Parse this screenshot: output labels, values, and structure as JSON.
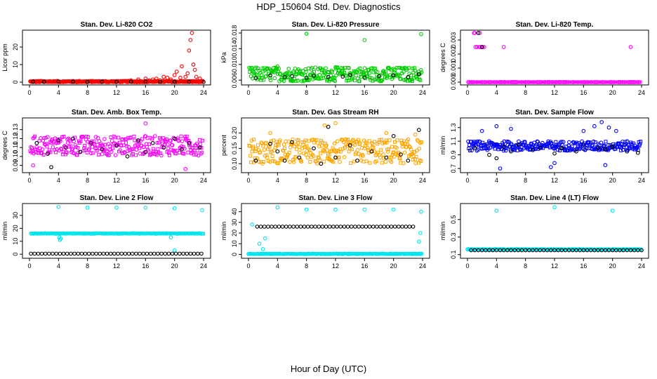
{
  "page": {
    "title": "HDP_150604  Std. Dev. Diagnostics",
    "xlabel": "Hour of Day (UTC)"
  },
  "colors": {
    "black": "#000000",
    "red": "#ff0000",
    "green": "#00cc00",
    "magenta": "#ff00ff",
    "orange": "#ffa500",
    "blue": "#0000ff",
    "cyan": "#00e5ee"
  },
  "chart_data": [
    {
      "type": "scatter",
      "title": "Stan. Dev. Li-820 CO2",
      "ylabel": "Licor ppm",
      "xlim": [
        0,
        24
      ],
      "ylim": [
        0,
        28
      ],
      "xticks": [
        "0",
        "4",
        "8",
        "12",
        "16",
        "20",
        "24"
      ],
      "yticks": [
        "0",
        "10",
        "20"
      ],
      "color": "red",
      "base": 0.3,
      "spread": 0.4,
      "black_points": [
        [
          0.5,
          0.2
        ],
        [
          2,
          0.1
        ],
        [
          4,
          0.3
        ],
        [
          6,
          0.2
        ],
        [
          8,
          0.1
        ],
        [
          10,
          0.2
        ],
        [
          12,
          0.1
        ],
        [
          14,
          0.2
        ],
        [
          16,
          0.3
        ],
        [
          18,
          0.2
        ],
        [
          20,
          0.1
        ],
        [
          22,
          0.2
        ],
        [
          24,
          0.1
        ]
      ],
      "outliers": [
        [
          14,
          1
        ],
        [
          15,
          1.5
        ],
        [
          16,
          2
        ],
        [
          16.5,
          1
        ],
        [
          17,
          1.5
        ],
        [
          17.5,
          2
        ],
        [
          18,
          1
        ],
        [
          18.5,
          3
        ],
        [
          19,
          2.5
        ],
        [
          19.5,
          1.5
        ],
        [
          20,
          4
        ],
        [
          20.3,
          6
        ],
        [
          20.8,
          2.5
        ],
        [
          21,
          9
        ],
        [
          21.5,
          3
        ],
        [
          21.8,
          5
        ],
        [
          22,
          18
        ],
        [
          22.2,
          24
        ],
        [
          22.4,
          28
        ],
        [
          22.6,
          10
        ],
        [
          22.8,
          7
        ],
        [
          23,
          3
        ],
        [
          23.5,
          2
        ]
      ]
    },
    {
      "type": "scatter",
      "title": "Stan. Dev. Li-820 Pressure",
      "ylabel": "kPa",
      "xlim": [
        0,
        24
      ],
      "ylim": [
        0.0055,
        0.018
      ],
      "xticks": [
        "0",
        "4",
        "8",
        "12",
        "16",
        "20",
        "24"
      ],
      "yticks": [
        "0.006",
        "0.010",
        "0.014",
        "0.018"
      ],
      "color": "green",
      "base": 0.0075,
      "spread": 0.0018,
      "black_points": [
        [
          1,
          0.0065
        ],
        [
          3,
          0.0072
        ],
        [
          5,
          0.0068
        ],
        [
          6,
          0.007
        ],
        [
          8,
          0.0066
        ],
        [
          9,
          0.0071
        ],
        [
          11,
          0.0068
        ],
        [
          13,
          0.0069
        ],
        [
          14,
          0.0073
        ],
        [
          16,
          0.0067
        ],
        [
          18,
          0.007
        ],
        [
          20,
          0.0072
        ],
        [
          22,
          0.0068
        ],
        [
          23.5,
          0.0075
        ]
      ],
      "outliers": [
        [
          8,
          0.0178
        ],
        [
          16,
          0.0162
        ],
        [
          23.8,
          0.0177
        ],
        [
          4,
          0.0095
        ],
        [
          12,
          0.0093
        ]
      ]
    },
    {
      "type": "scatter",
      "title": "Stan. Dev. Li-820 Temp.",
      "ylabel": "degrees C",
      "xlim": [
        0,
        24
      ],
      "ylim": [
        0,
        0.0035
      ],
      "xticks": [
        "0",
        "4",
        "8",
        "12",
        "16",
        "20",
        "24"
      ],
      "yticks": [
        "0.000",
        "0.001",
        "0.002",
        "0.003"
      ],
      "color": "magenta",
      "base": 0.0,
      "spread": 0.0,
      "black_points": [
        [
          1.5,
          0.0035
        ],
        [
          2,
          0.0025
        ]
      ],
      "outliers": [
        [
          0.9,
          0.0035
        ],
        [
          1.1,
          0.0025
        ],
        [
          1.3,
          0.0025
        ],
        [
          1.6,
          0.0025
        ],
        [
          1.8,
          0.0025
        ],
        [
          2.1,
          0.0025
        ],
        [
          2.3,
          0.0025
        ],
        [
          5,
          0.0025
        ],
        [
          22.5,
          0.0025
        ],
        [
          1,
          0.0035
        ],
        [
          1.7,
          0.0035
        ]
      ]
    },
    {
      "type": "scatter",
      "title": "Stan. Dev. Amb. Box Temp.",
      "ylabel": "degrees C",
      "xlim": [
        0,
        24
      ],
      "ylim": [
        0.085,
        0.14
      ],
      "xticks": [
        "0",
        "4",
        "8",
        "12",
        "16",
        "20",
        "24"
      ],
      "yticks": [
        "0.09",
        "0.10",
        "0.11",
        "0.12",
        "0.13"
      ],
      "color": "magenta",
      "base": 0.112,
      "spread": 0.011,
      "black_points": [
        [
          1,
          0.115
        ],
        [
          2.5,
          0.103
        ],
        [
          3,
          0.088
        ],
        [
          4,
          0.118
        ],
        [
          5,
          0.11
        ],
        [
          6,
          0.12
        ],
        [
          7,
          0.105
        ],
        [
          8.5,
          0.115
        ],
        [
          10,
          0.108
        ],
        [
          12,
          0.112
        ],
        [
          13.5,
          0.1
        ],
        [
          15,
          0.118
        ],
        [
          16,
          0.105
        ],
        [
          17,
          0.115
        ],
        [
          18.5,
          0.11
        ],
        [
          20,
          0.12
        ],
        [
          21,
          0.108
        ],
        [
          22,
          0.115
        ],
        [
          23.5,
          0.11
        ]
      ],
      "outliers": [
        [
          16,
          0.137
        ],
        [
          21.5,
          0.086
        ],
        [
          0.5,
          0.09
        ]
      ]
    },
    {
      "type": "scatter",
      "title": "Stan. Dev. Gas Stream RH",
      "ylabel": "percent",
      "xlim": [
        0,
        24
      ],
      "ylim": [
        0.08,
        0.24
      ],
      "xticks": [
        "0",
        "4",
        "8",
        "12",
        "16",
        "20",
        "24"
      ],
      "yticks": [
        "0.10",
        "0.15",
        "0.20"
      ],
      "color": "orange",
      "base": 0.14,
      "spread": 0.04,
      "black_points": [
        [
          1,
          0.11
        ],
        [
          3,
          0.165
        ],
        [
          4,
          0.14
        ],
        [
          5,
          0.11
        ],
        [
          6,
          0.17
        ],
        [
          7,
          0.12
        ],
        [
          9,
          0.15
        ],
        [
          10,
          0.1
        ],
        [
          11,
          0.22
        ],
        [
          12,
          0.12
        ],
        [
          14,
          0.16
        ],
        [
          15,
          0.11
        ],
        [
          17,
          0.14
        ],
        [
          19,
          0.12
        ],
        [
          20,
          0.19
        ],
        [
          21,
          0.13
        ],
        [
          22,
          0.11
        ],
        [
          23.5,
          0.21
        ]
      ],
      "outliers": [
        [
          10.5,
          0.225
        ],
        [
          12,
          0.232
        ],
        [
          3,
          0.2
        ],
        [
          19,
          0.2
        ],
        [
          23,
          0.195
        ]
      ]
    },
    {
      "type": "scatter",
      "title": "Stan. Dev. Sample Flow",
      "ylabel": "ml/min",
      "xlim": [
        0,
        24
      ],
      "ylim": [
        0.68,
        1.4
      ],
      "xticks": [
        "0",
        "4",
        "8",
        "12",
        "16",
        "20",
        "24"
      ],
      "yticks": [
        "0.7",
        "0.9",
        "1.1",
        "1.3"
      ],
      "color": "blue",
      "base": 1.03,
      "spread": 0.07,
      "black_points": [
        [
          1,
          1.0
        ],
        [
          3,
          0.9
        ],
        [
          4,
          0.85
        ],
        [
          5,
          1.02
        ],
        [
          6,
          0.95
        ],
        [
          7,
          1.05
        ],
        [
          9,
          0.97
        ],
        [
          10,
          1.0
        ],
        [
          12,
          0.92
        ],
        [
          13,
          1.0
        ],
        [
          15,
          0.95
        ],
        [
          16,
          1.05
        ],
        [
          18,
          1.0
        ],
        [
          19,
          0.98
        ],
        [
          20,
          1.02
        ],
        [
          22,
          0.95
        ],
        [
          23.5,
          0.93
        ]
      ],
      "outliers": [
        [
          2,
          1.25
        ],
        [
          4,
          1.32
        ],
        [
          6,
          1.28
        ],
        [
          11.5,
          0.72
        ],
        [
          16,
          1.25
        ],
        [
          17.5,
          1.32
        ],
        [
          18.5,
          1.38
        ],
        [
          19,
          0.75
        ],
        [
          19.5,
          1.3
        ],
        [
          20.5,
          1.25
        ],
        [
          4.5,
          0.7
        ],
        [
          12,
          0.78
        ]
      ]
    },
    {
      "type": "scatter",
      "title": "Stan. Dev. Line 2 Flow",
      "ylabel": "ml/min",
      "xlim": [
        0,
        24
      ],
      "ylim": [
        -1,
        37
      ],
      "xticks": [
        "0",
        "4",
        "8",
        "12",
        "16",
        "20",
        "24"
      ],
      "yticks": [
        "0",
        "10",
        "20",
        "30"
      ],
      "color": "cyan",
      "band": {
        "y": 16,
        "from": 0.2,
        "to": 24
      },
      "black_line": {
        "y": 0.4,
        "from": 0.2,
        "to": 24
      },
      "outliers": [
        [
          4,
          36.5
        ],
        [
          8,
          36
        ],
        [
          12,
          36
        ],
        [
          16,
          36
        ],
        [
          20,
          35.5
        ],
        [
          23.8,
          34
        ],
        [
          4.2,
          11
        ],
        [
          4.1,
          13
        ],
        [
          4.3,
          12
        ],
        [
          19.5,
          13
        ],
        [
          20,
          3
        ]
      ]
    },
    {
      "type": "scatter",
      "title": "Stan. Dev. Line 3 Flow",
      "ylabel": "ml/min",
      "xlim": [
        0,
        24
      ],
      "ylim": [
        -1,
        45
      ],
      "xticks": [
        "0",
        "4",
        "8",
        "12",
        "16",
        "20",
        "24"
      ],
      "yticks": [
        "0",
        "10",
        "20",
        "30",
        "40"
      ],
      "color": "cyan",
      "band": {
        "y": 0.5,
        "from": 0,
        "to": 24
      },
      "black_line": {
        "y": 26,
        "from": 1.2,
        "to": 23
      },
      "outliers": [
        [
          4,
          44
        ],
        [
          8,
          42
        ],
        [
          12,
          42
        ],
        [
          16,
          42
        ],
        [
          20,
          42
        ],
        [
          23.8,
          40
        ],
        [
          1.5,
          10
        ],
        [
          2,
          5
        ],
        [
          0.5,
          28
        ],
        [
          23.5,
          12
        ],
        [
          23.7,
          20
        ],
        [
          2.3,
          15
        ]
      ]
    },
    {
      "type": "scatter",
      "title": "Stan. Dev. Line 4 (LT) Flow",
      "ylabel": "ml/min",
      "xlim": [
        0,
        24
      ],
      "ylim": [
        0.09,
        0.65
      ],
      "xticks": [
        "0",
        "4",
        "8",
        "12",
        "16",
        "20",
        "24"
      ],
      "yticks": [
        "0.1",
        "0.3",
        "0.5"
      ],
      "color": "cyan",
      "band": {
        "y": 0.16,
        "from": 0,
        "to": 24
      },
      "black_line": {
        "y": 0.15,
        "from": 0.5,
        "to": 24
      },
      "outliers": [
        [
          4,
          0.6
        ],
        [
          12,
          0.64
        ],
        [
          20,
          0.6
        ]
      ]
    }
  ]
}
